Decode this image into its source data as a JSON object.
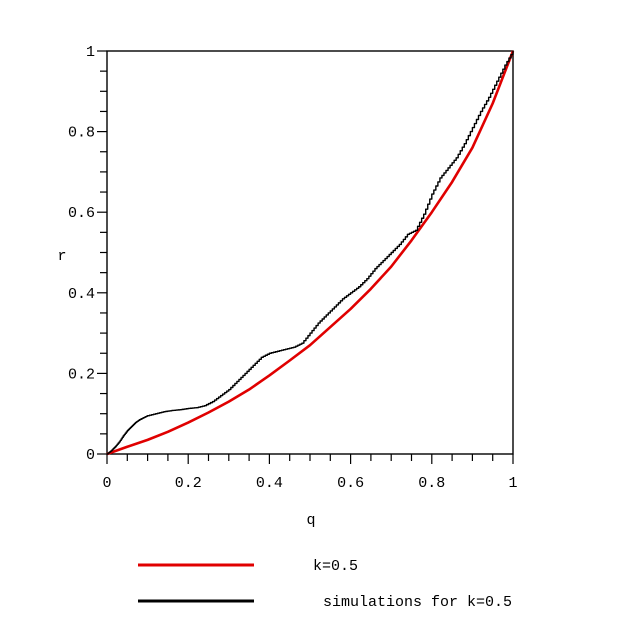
{
  "chart_data": {
    "type": "line",
    "xlabel": "q",
    "ylabel": "r",
    "xlim": [
      0,
      1
    ],
    "ylim": [
      0,
      1
    ],
    "x_ticks": [
      "0",
      "0.2",
      "0.4",
      "0.6",
      "0.8",
      "1"
    ],
    "y_ticks": [
      "0",
      "0.2",
      "0.4",
      "0.6",
      "0.8",
      "1"
    ],
    "grid": false,
    "legend_position": "bottom",
    "series": [
      {
        "name": "k=0.5",
        "color": "#e00000",
        "style": "smooth",
        "x": [
          0,
          0.05,
          0.1,
          0.15,
          0.2,
          0.25,
          0.3,
          0.35,
          0.4,
          0.45,
          0.5,
          0.55,
          0.6,
          0.65,
          0.7,
          0.75,
          0.8,
          0.85,
          0.9,
          0.95,
          1.0
        ],
        "y": [
          0,
          0.018,
          0.035,
          0.055,
          0.078,
          0.103,
          0.13,
          0.16,
          0.195,
          0.232,
          0.27,
          0.315,
          0.36,
          0.41,
          0.465,
          0.53,
          0.6,
          0.675,
          0.76,
          0.87,
          1.0
        ]
      },
      {
        "name": "simulations for k=0.5",
        "color": "#000000",
        "style": "step",
        "x": [
          0,
          0.01,
          0.02,
          0.03,
          0.04,
          0.05,
          0.06,
          0.07,
          0.08,
          0.09,
          0.1,
          0.12,
          0.14,
          0.16,
          0.18,
          0.2,
          0.22,
          0.24,
          0.26,
          0.28,
          0.3,
          0.32,
          0.34,
          0.36,
          0.38,
          0.4,
          0.42,
          0.44,
          0.46,
          0.48,
          0.5,
          0.52,
          0.54,
          0.56,
          0.58,
          0.6,
          0.62,
          0.64,
          0.66,
          0.68,
          0.7,
          0.72,
          0.74,
          0.76,
          0.78,
          0.8,
          0.82,
          0.84,
          0.86,
          0.88,
          0.9,
          0.92,
          0.94,
          0.96,
          0.98,
          1.0
        ],
        "y": [
          0,
          0.008,
          0.018,
          0.03,
          0.045,
          0.058,
          0.068,
          0.078,
          0.085,
          0.09,
          0.095,
          0.1,
          0.105,
          0.108,
          0.11,
          0.113,
          0.115,
          0.12,
          0.13,
          0.145,
          0.16,
          0.18,
          0.2,
          0.22,
          0.24,
          0.25,
          0.255,
          0.26,
          0.265,
          0.275,
          0.3,
          0.325,
          0.345,
          0.365,
          0.385,
          0.4,
          0.415,
          0.435,
          0.46,
          0.48,
          0.5,
          0.52,
          0.545,
          0.555,
          0.595,
          0.645,
          0.685,
          0.71,
          0.735,
          0.77,
          0.81,
          0.85,
          0.885,
          0.925,
          0.965,
          1.0
        ]
      }
    ]
  }
}
